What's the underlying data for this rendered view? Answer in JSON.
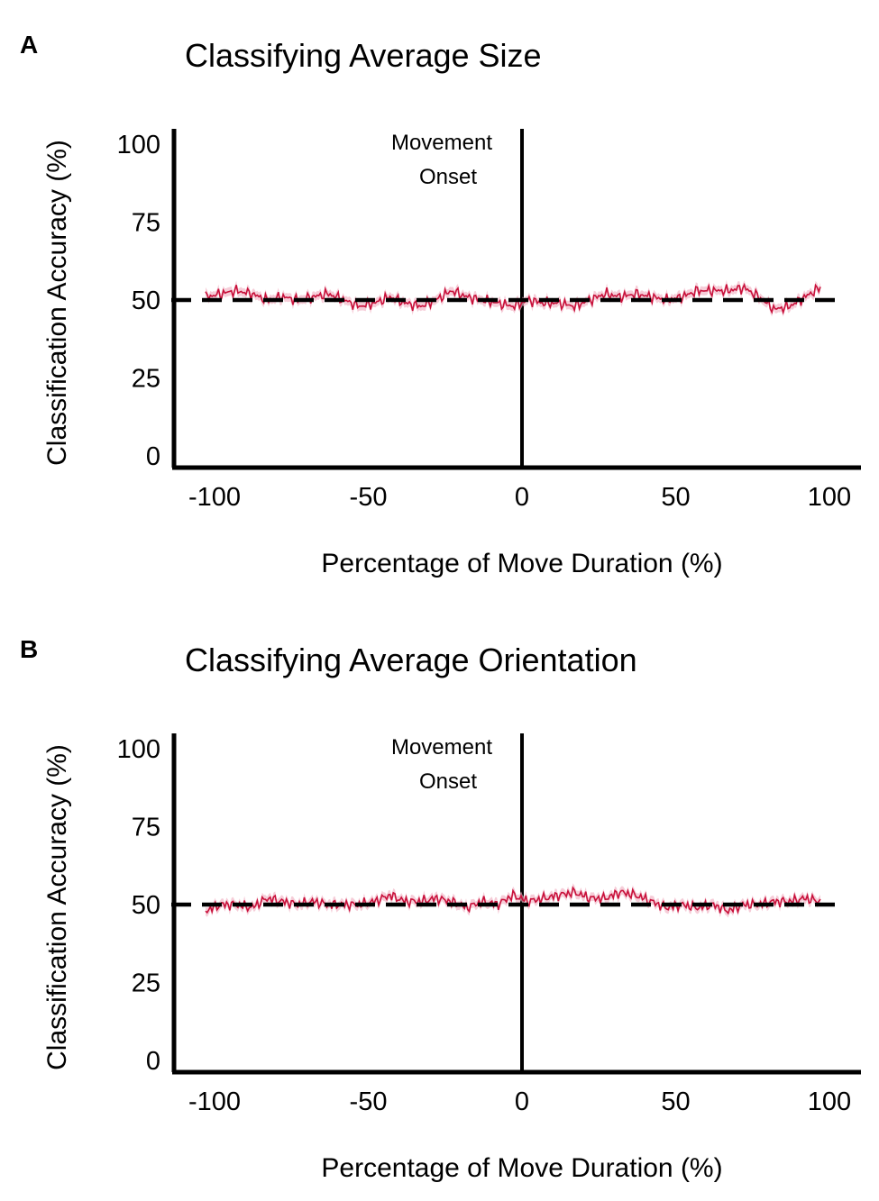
{
  "colors": {
    "series": "#c8103a",
    "band": "#f2b8c8",
    "axis": "#000000",
    "chance": "#000000"
  },
  "chart_data": [
    {
      "panel": "A",
      "type": "line",
      "title": "Classifying Average Size",
      "xlabel": "Percentage of Move Duration (%)",
      "ylabel": "Classification Accuracy (%)",
      "xlim": [
        -100,
        100
      ],
      "ylim": [
        0,
        100
      ],
      "xticks": [
        "-100",
        "-50",
        "0",
        "50",
        "100"
      ],
      "yticks": [
        "100",
        "75",
        "50",
        "25",
        "0"
      ],
      "annotation": [
        "Movement",
        "Onset"
      ],
      "onset_x": 0,
      "chance_level": 50,
      "series": [
        {
          "x": [
            -100,
            -95,
            -90,
            -85,
            -80,
            -75,
            -70,
            -65,
            -60,
            -55,
            -50,
            -45,
            -40,
            -35,
            -30,
            -25,
            -20,
            -15,
            -10,
            -5,
            0,
            5,
            10,
            15,
            20,
            25,
            30,
            35,
            40,
            45,
            50,
            55,
            60,
            65,
            70,
            75,
            80,
            85,
            90,
            95,
            100
          ],
          "y": [
            51,
            52,
            53,
            52,
            50,
            51,
            50,
            51,
            52,
            50,
            48,
            49,
            51,
            49,
            48,
            50,
            53,
            51,
            50,
            49,
            48,
            50,
            49,
            49,
            48,
            50,
            52,
            51,
            52,
            51,
            50,
            51,
            53,
            53,
            53,
            54,
            51,
            47,
            48,
            51,
            54
          ]
        }
      ]
    },
    {
      "panel": "B",
      "type": "line",
      "title": "Classifying Average Orientation",
      "xlabel": "Percentage of Move Duration (%)",
      "ylabel": "Classification Accuracy (%)",
      "xlim": [
        -100,
        100
      ],
      "ylim": [
        0,
        100
      ],
      "xticks": [
        "-100",
        "-50",
        "0",
        "50",
        "100"
      ],
      "yticks": [
        "100",
        "75",
        "50",
        "25",
        "0"
      ],
      "annotation": [
        "Movement",
        "Onset"
      ],
      "onset_x": 0,
      "chance_level": 50,
      "series": [
        {
          "x": [
            -100,
            -95,
            -90,
            -85,
            -80,
            -75,
            -70,
            -65,
            -60,
            -55,
            -50,
            -45,
            -40,
            -35,
            -30,
            -25,
            -20,
            -15,
            -10,
            -5,
            0,
            5,
            10,
            15,
            20,
            25,
            30,
            35,
            40,
            45,
            50,
            55,
            60,
            65,
            70,
            75,
            80,
            85,
            90,
            95,
            100
          ],
          "y": [
            48,
            50,
            50,
            49,
            52,
            51,
            50,
            51,
            50,
            50,
            50,
            51,
            53,
            51,
            51,
            52,
            51,
            49,
            51,
            50,
            53,
            51,
            52,
            53,
            54,
            52,
            52,
            54,
            53,
            51,
            49,
            50,
            49,
            50,
            48,
            50,
            50,
            51,
            51,
            52,
            51
          ]
        }
      ]
    }
  ]
}
